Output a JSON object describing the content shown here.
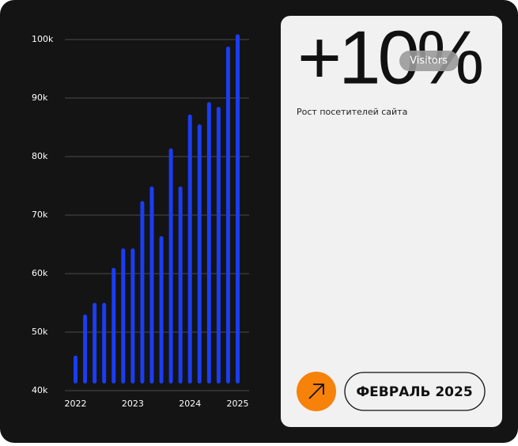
{
  "chart_data": {
    "type": "bar",
    "categories": [
      "2022",
      null,
      null,
      null,
      null,
      null,
      "2023",
      null,
      null,
      null,
      null,
      null,
      "2024",
      null,
      null,
      null,
      null,
      "2025"
    ],
    "values": [
      46000,
      53000,
      55000,
      55000,
      61000,
      64300,
      64300,
      72400,
      74900,
      66400,
      81400,
      74900,
      87200,
      85500,
      89300,
      88500,
      98800,
      100900
    ],
    "color": "#1b3df2",
    "ylim": [
      40000,
      100000
    ],
    "yticks": [
      {
        "value": 40000,
        "label": "40k"
      },
      {
        "value": 50000,
        "label": "50k"
      },
      {
        "value": 60000,
        "label": "60k"
      },
      {
        "value": 70000,
        "label": "70k"
      },
      {
        "value": 80000,
        "label": "80k"
      },
      {
        "value": 90000,
        "label": "90k"
      },
      {
        "value": 100000,
        "label": "100k"
      }
    ],
    "grid": true
  },
  "card": {
    "headline": "+10%",
    "badge": "Visitors",
    "caption": "Рост посетителей сайта",
    "period": "ФЕВРАЛЬ 2025"
  }
}
